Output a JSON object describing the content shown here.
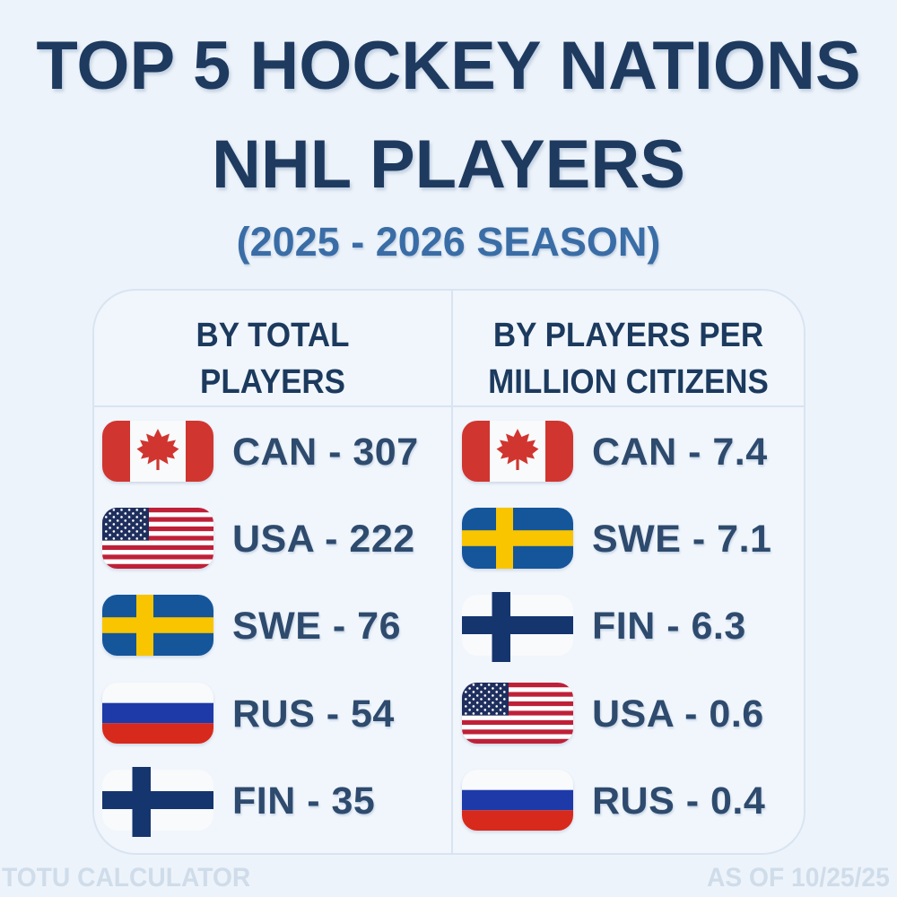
{
  "title": {
    "line1": "TOP 5 HOCKEY NATIONS",
    "line2": "NHL PLAYERS",
    "subtitle": "(2025 - 2026 SEASON)"
  },
  "table": {
    "columns": [
      {
        "id": "by-total-players",
        "header_line1": "BY TOTAL",
        "header_line2": "PLAYERS",
        "rows": [
          {
            "flag": "can",
            "country": "canada",
            "label": "CAN - 307"
          },
          {
            "flag": "usa",
            "country": "usa",
            "label": "USA - 222"
          },
          {
            "flag": "swe",
            "country": "sweden",
            "label": "SWE - 76"
          },
          {
            "flag": "rus",
            "country": "russia",
            "label": "RUS - 54"
          },
          {
            "flag": "fin",
            "country": "finland",
            "label": "FIN - 35"
          }
        ]
      },
      {
        "id": "by-players-per-million",
        "header_line1": "BY PLAYERS PER",
        "header_line2": "MILLION CITIZENS",
        "rows": [
          {
            "flag": "can",
            "country": "canada",
            "label": "CAN - 7.4"
          },
          {
            "flag": "swe",
            "country": "sweden",
            "label": "SWE - 7.1"
          },
          {
            "flag": "fin",
            "country": "finland",
            "label": "FIN - 6.3"
          },
          {
            "flag": "usa",
            "country": "usa",
            "label": "USA - 0.6"
          },
          {
            "flag": "rus",
            "country": "russia",
            "label": "RUS - 0.4"
          }
        ]
      }
    ]
  },
  "footer": {
    "left": "TOTU CALCULATOR",
    "right": "AS OF 10/25/25"
  },
  "colors": {
    "page_bg": "#edf3fa",
    "card_bg": "#f1f6fc",
    "card_border": "#d9e4f1",
    "title_navy": "#1e3a5f",
    "subtitle_blue": "#3a6da6",
    "header_navy": "#1c3a5e",
    "row_text": "#2e4b6e",
    "footer_text": "#cfdcea",
    "flags": {
      "white": "#f8fafb",
      "canada_red": "#d13530",
      "usa_navy": "#1e2f5e",
      "usa_red": "#bf2038",
      "swe_blue": "#15569b",
      "swe_yellow": "#f8c500",
      "rus_blue": "#1e3aa8",
      "rus_red": "#d8291d",
      "fin_navy": "#15356e"
    }
  },
  "chart_data": {
    "type": "table",
    "title": "TOP 5 HOCKEY NATIONS NHL PLAYERS",
    "season": "2025 - 2026",
    "as_of": "10/25/25",
    "by_total_players": [
      {
        "country": "CAN",
        "value": 307
      },
      {
        "country": "USA",
        "value": 222
      },
      {
        "country": "SWE",
        "value": 76
      },
      {
        "country": "RUS",
        "value": 54
      },
      {
        "country": "FIN",
        "value": 35
      }
    ],
    "by_players_per_million_citizens": [
      {
        "country": "CAN",
        "value": 7.4
      },
      {
        "country": "SWE",
        "value": 7.1
      },
      {
        "country": "FIN",
        "value": 6.3
      },
      {
        "country": "USA",
        "value": 0.6
      },
      {
        "country": "RUS",
        "value": 0.4
      }
    ]
  }
}
